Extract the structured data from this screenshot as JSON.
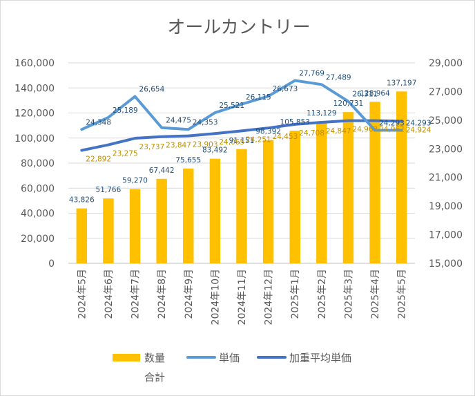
{
  "chart_data": {
    "type": "bar",
    "title": "オールカントリー",
    "categories": [
      "2024年5月",
      "2024年6月",
      "2024年7月",
      "2024年8月",
      "2024年9月",
      "2024年10月",
      "2024年11月",
      "2024年12月",
      "2025年1月",
      "2025年2月",
      "2025年3月",
      "2025年4月",
      "2025年5月"
    ],
    "series": [
      {
        "name": "数量合計",
        "kind": "bar",
        "axis": "left",
        "color": "#ffc000",
        "values": [
          43826,
          51766,
          59270,
          67442,
          75655,
          83492,
          91151,
          98392,
          105853,
          113129,
          120731,
          128964,
          137197
        ],
        "labels": [
          "43,826",
          "51,766",
          "59,270",
          "67,442",
          "75,655",
          "83,492",
          "91,151",
          "98,392",
          "105,853",
          "113,129",
          "120,731",
          "128,964",
          "137,197"
        ]
      },
      {
        "name": "単価",
        "kind": "line",
        "axis": "right",
        "color": "#5b9bd5",
        "values": [
          24348,
          25189,
          26654,
          24475,
          24353,
          25521,
          26115,
          26673,
          27769,
          27489,
          26311,
          24293,
          24293
        ],
        "labels": [
          "24,348",
          "25,189",
          "26,654",
          "24,475",
          "24,353",
          "25,521",
          "26,115",
          "26,673",
          "27,769",
          "27,489",
          "26,311",
          "24,293",
          "24,293"
        ]
      },
      {
        "name": "加重平均単価",
        "kind": "line",
        "axis": "right",
        "color": "#4472c4",
        "values": [
          22892,
          23275,
          23737,
          23847,
          23903,
          24065,
          24251,
          24453,
          24708,
          24847,
          24963,
          24962,
          24924
        ],
        "labels": [
          "22,892",
          "23,275",
          "23,737",
          "23,847",
          "23,903",
          "24,065",
          "24,251",
          "24,453",
          "24,708",
          "24,847",
          "24,963",
          "24,962",
          "24,924"
        ]
      }
    ],
    "y_left": {
      "min": 0,
      "max": 160000,
      "step": 20000,
      "tick_labels": [
        "0",
        "20,000",
        "40,000",
        "60,000",
        "80,000",
        "100,000",
        "120,000",
        "140,000",
        "160,000"
      ]
    },
    "y_right": {
      "min": 15000,
      "max": 29000,
      "step": 2000,
      "tick_labels": [
        "15,000",
        "17,000",
        "19,000",
        "21,000",
        "23,000",
        "25,000",
        "27,000",
        "29,000"
      ]
    },
    "legend": {
      "position": "bottom",
      "entries": [
        {
          "line1": "数量",
          "line2": "合計",
          "kind": "bar",
          "color": "#ffc000"
        },
        {
          "line1": "単価",
          "kind": "line",
          "color": "#5b9bd5"
        },
        {
          "line1": "加重平均単価",
          "kind": "line",
          "color": "#4472c4"
        }
      ]
    },
    "grid": true
  }
}
